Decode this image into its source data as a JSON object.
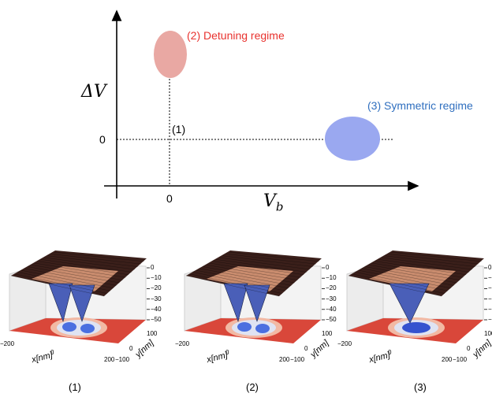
{
  "phase_diagram": {
    "x_axis_label": "V",
    "x_axis_label_sub": "b",
    "y_axis_label": "ΔV",
    "x_tick": "0",
    "y_tick": "0",
    "point_1": "(1)",
    "region_2": "(2) Detuning regime",
    "region_3": "(3) Symmetric regime",
    "region_2_color": "#e9a8a3",
    "region_3_color": "#9aa8f0"
  },
  "surface_plots": {
    "z_ticks": [
      "0",
      "−10",
      "−20",
      "−30",
      "−40",
      "−50"
    ],
    "x_label": "x[nm]",
    "y_label": "y[nm]",
    "x_tick_left": "−200",
    "x_tick_mid": "0",
    "x_tick_right": "200",
    "y_tick_bottom": "−100",
    "y_tick_mid": "0",
    "y_tick_top": "100",
    "panels": [
      {
        "caption": "(1)"
      },
      {
        "caption": "(2)"
      },
      {
        "caption": "(3)"
      }
    ]
  }
}
